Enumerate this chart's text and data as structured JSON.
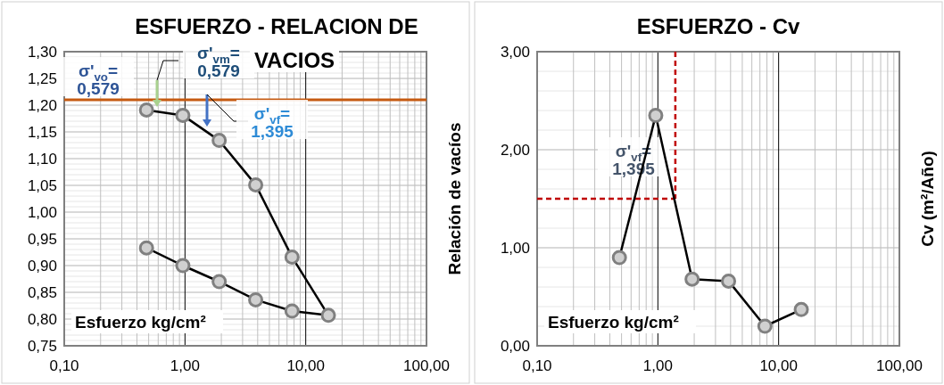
{
  "chart_data": [
    {
      "type": "line",
      "title": "ESFUERZO - RELACION DE VACIOS",
      "xlabel": "Esfuerzo  kg/cm²",
      "ylabel": "Relación de vacíos",
      "log": "x",
      "grid": true,
      "marker": "circle",
      "line_style": "solid",
      "xlim": [
        0.1,
        100
      ],
      "xticks": [
        {
          "value": 0.1,
          "label": "0,10"
        },
        {
          "value": 1,
          "label": "1,00"
        },
        {
          "value": 10,
          "label": "10,00"
        },
        {
          "value": 100,
          "label": "100,00"
        }
      ],
      "ylim": [
        0.75,
        1.3
      ],
      "yticks": [
        {
          "value": 0.75,
          "label": "0,75"
        },
        {
          "value": 0.8,
          "label": "0,80"
        },
        {
          "value": 0.85,
          "label": "0,85"
        },
        {
          "value": 0.9,
          "label": "0,90"
        },
        {
          "value": 0.95,
          "label": "0,95"
        },
        {
          "value": 1.0,
          "label": "1,00"
        },
        {
          "value": 1.05,
          "label": "1,05"
        },
        {
          "value": 1.1,
          "label": "1,10"
        },
        {
          "value": 1.15,
          "label": "1,15"
        },
        {
          "value": 1.2,
          "label": "1,20"
        },
        {
          "value": 1.25,
          "label": "1,25"
        },
        {
          "value": 1.3,
          "label": "1,30"
        }
      ],
      "series": [
        {
          "color": "#000000",
          "x": [
            0.48,
            0.96,
            1.92,
            3.85,
            7.7,
            15.4,
            7.7,
            3.85,
            1.92,
            0.96,
            0.48
          ],
          "values": [
            1.191,
            1.181,
            1.134,
            1.051,
            0.916,
            0.807,
            0.815,
            0.836,
            0.87,
            0.9,
            0.933
          ]
        }
      ],
      "ref_lines": [
        {
          "axis": "y",
          "value": 1.21,
          "color": "#c55a11",
          "line_style": "solid"
        }
      ],
      "annotations": [
        "σ'$_{vo}$= 0,579",
        "σ'$_{vm}$= 0,579",
        "σ'$_{vf}$= 1,395"
      ]
    },
    {
      "type": "line",
      "title": "ESFUERZO - Cv",
      "xlabel": "Esfuerzo  kg/cm²",
      "ylabel": "Cv (m²/Año)",
      "log": "x",
      "grid": true,
      "marker": "circle",
      "line_style": "solid",
      "xlim": [
        0.1,
        100
      ],
      "xticks": [
        {
          "value": 0.1,
          "label": "0,10"
        },
        {
          "value": 1,
          "label": "1,00"
        },
        {
          "value": 10,
          "label": "10,00"
        },
        {
          "value": 100,
          "label": "100,00"
        }
      ],
      "ylim": [
        0,
        3
      ],
      "yticks": [
        {
          "value": 0,
          "label": "0,00"
        },
        {
          "value": 1,
          "label": "1,00"
        },
        {
          "value": 2,
          "label": "2,00"
        },
        {
          "value": 3,
          "label": "3,00"
        }
      ],
      "series": [
        {
          "color": "#000000",
          "x": [
            0.48,
            0.96,
            1.92,
            3.85,
            7.7,
            15.4
          ],
          "values": [
            0.9,
            2.35,
            0.68,
            0.66,
            0.2,
            0.37
          ]
        }
      ],
      "ref_lines": [
        {
          "axis": "x",
          "value": 1.395,
          "color": "#c00000",
          "line_style": "dashed"
        },
        {
          "axis": "y",
          "value": 1.5,
          "color": "#c00000",
          "line_style": "dashed"
        }
      ],
      "annotations": [
        "σ'$_{vf}$= 1,395"
      ]
    }
  ]
}
